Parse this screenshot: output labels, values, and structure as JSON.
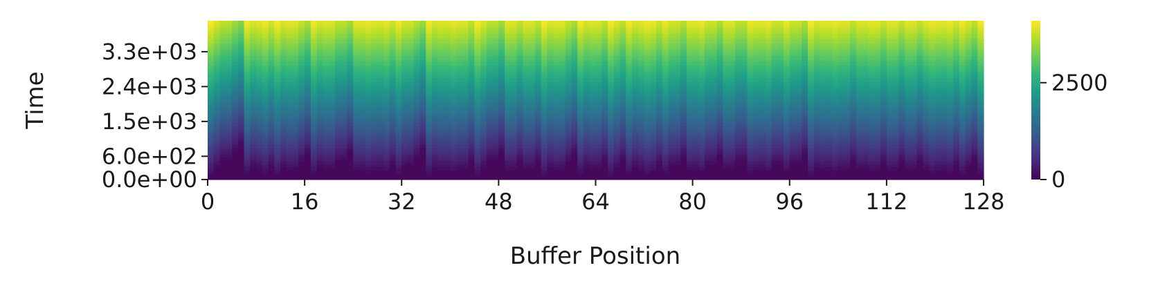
{
  "chart_data": {
    "type": "heatmap",
    "title": "",
    "xlabel": "Buffer Position",
    "ylabel": "Time",
    "x_range": [
      0,
      128
    ],
    "x_ticks": [
      0,
      16,
      32,
      48,
      64,
      80,
      96,
      112,
      128
    ],
    "x_tick_labels": [
      "0",
      "16",
      "32",
      "48",
      "64",
      "80",
      "96",
      "112",
      "128"
    ],
    "y_range": [
      0,
      4100
    ],
    "y_ticks": [
      0,
      600,
      1500,
      2400,
      3300
    ],
    "y_tick_labels": [
      "0.0e+00",
      "6.0e+02",
      "1.5e+03",
      "2.4e+03",
      "3.3e+03"
    ],
    "colorbar": {
      "colormap": "viridis",
      "range": [
        0,
        4100
      ],
      "ticks": [
        0,
        2500
      ],
      "tick_labels": [
        "0",
        "2500"
      ]
    },
    "num_positions": 128,
    "num_time_rows": 50,
    "reset_positions": [
      0,
      6,
      8,
      9,
      11,
      13,
      17,
      19,
      24,
      26,
      27,
      29,
      31,
      36,
      38,
      40,
      41,
      44,
      49,
      52,
      55,
      57,
      61,
      63,
      66,
      69,
      71,
      72,
      73,
      75,
      79,
      81,
      85,
      89,
      90,
      92,
      95,
      99,
      101,
      103,
      104,
      107,
      109,
      112,
      115,
      118,
      119,
      120,
      122,
      124,
      127
    ],
    "colors": {
      "viridis_stops": [
        "#440154",
        "#482878",
        "#3e4989",
        "#31688e",
        "#26828e",
        "#1f9e89",
        "#35b779",
        "#6ece58",
        "#b5de2b",
        "#fde725"
      ],
      "text": "#1a1a1a",
      "background": "#ffffff"
    }
  }
}
